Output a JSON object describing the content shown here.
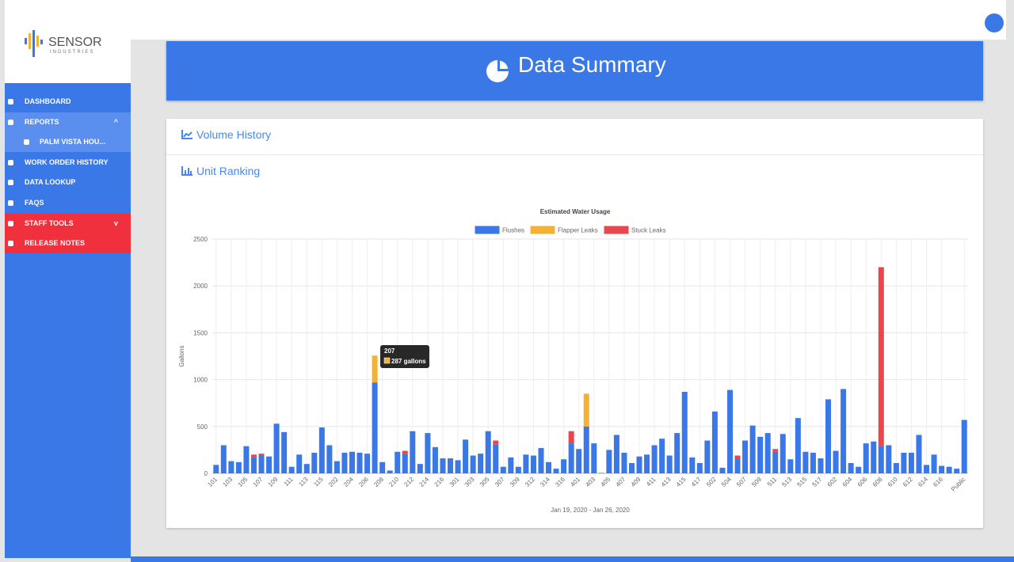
{
  "logo": {
    "name": "SENSOR",
    "tagline": "INDUSTRIES"
  },
  "nav": [
    {
      "label": "DASHBOARD"
    },
    {
      "label": "REPORTS"
    },
    {
      "label": "PALM VISTA HOU..."
    },
    {
      "label": "WORK ORDER HISTORY"
    },
    {
      "label": "DATA LOOKUP"
    },
    {
      "label": "FAQS"
    },
    {
      "label": "STAFF TOOLS"
    },
    {
      "label": "RELEASE NOTES"
    }
  ],
  "header": {
    "title": "Data Summary"
  },
  "sections": [
    "Volume History",
    "Unit Ranking"
  ],
  "chart_data": {
    "type": "stacked_bar",
    "title": "Estimated Water Usage",
    "y_label": "Gallons",
    "x_label": "Jan 19, 2020 - Jan 26, 2020",
    "ylim": [
      0,
      2500
    ],
    "yticks": [
      0,
      500,
      1000,
      1500,
      2000,
      2500
    ],
    "grid": true,
    "legend": "top",
    "tooltip": {
      "title": "207",
      "text": "287 gallons"
    },
    "categories": [
      "101",
      null,
      "103",
      null,
      "105",
      null,
      "107",
      null,
      "109",
      null,
      "111",
      null,
      "113",
      null,
      "115",
      null,
      "202",
      null,
      "204",
      null,
      "206",
      null,
      "208",
      null,
      "210",
      null,
      "212",
      null,
      "214",
      null,
      "216",
      null,
      "301",
      null,
      "303",
      null,
      "305",
      null,
      "307",
      null,
      "309",
      null,
      "312",
      null,
      "314",
      null,
      "316",
      null,
      "401",
      null,
      "403",
      null,
      "405",
      null,
      "407",
      null,
      "409",
      null,
      "411",
      null,
      "413",
      null,
      "415",
      null,
      "417",
      null,
      "502",
      null,
      "504",
      null,
      "507",
      null,
      "509",
      null,
      "511",
      null,
      "513",
      null,
      "515",
      null,
      "517",
      null,
      "602",
      null,
      "604",
      null,
      "606",
      null,
      "608",
      null,
      "610",
      null,
      "612",
      null,
      "614",
      null,
      "616",
      null,
      null,
      "Public"
    ],
    "series": [
      {
        "name": "Flushes",
        "color": "#3b78e7",
        "values": [
          90,
          300,
          130,
          120,
          290,
          170,
          190,
          180,
          530,
          440,
          70,
          200,
          100,
          220,
          490,
          300,
          130,
          220,
          230,
          220,
          210,
          970,
          120,
          30,
          230,
          210,
          450,
          100,
          430,
          280,
          160,
          160,
          140,
          360,
          190,
          210,
          450,
          310,
          70,
          170,
          70,
          200,
          190,
          270,
          120,
          50,
          150,
          320,
          260,
          500,
          320,
          5,
          250,
          410,
          220,
          110,
          180,
          200,
          300,
          370,
          190,
          430,
          870,
          170,
          110,
          350,
          660,
          60,
          890,
          160,
          350,
          510,
          390,
          430,
          230,
          420,
          150,
          590,
          230,
          220,
          160,
          790,
          240,
          900,
          110,
          70,
          320,
          340,
          290,
          300,
          110,
          220,
          220,
          410,
          90,
          200,
          80,
          70,
          50,
          570
        ]
      },
      {
        "name": "Flapper Leaks",
        "color": "#f4b135",
        "values": [
          0,
          0,
          0,
          0,
          0,
          0,
          0,
          0,
          0,
          0,
          0,
          0,
          0,
          0,
          0,
          0,
          0,
          0,
          0,
          0,
          0,
          287,
          0,
          0,
          0,
          0,
          0,
          0,
          0,
          0,
          0,
          0,
          0,
          0,
          0,
          0,
          0,
          0,
          0,
          0,
          0,
          0,
          0,
          0,
          0,
          0,
          0,
          0,
          0,
          350,
          0,
          0,
          0,
          0,
          0,
          0,
          0,
          0,
          0,
          0,
          0,
          0,
          0,
          0,
          0,
          0,
          0,
          0,
          0,
          0,
          0,
          0,
          0,
          0,
          0,
          0,
          0,
          0,
          0,
          0,
          0,
          0,
          0,
          0,
          0,
          0,
          0,
          0,
          0,
          0,
          0,
          0,
          0,
          0,
          0,
          0,
          0,
          0,
          0,
          0
        ]
      },
      {
        "name": "Stuck Leaks",
        "color": "#e8474c",
        "values": [
          0,
          0,
          0,
          0,
          0,
          30,
          20,
          0,
          0,
          0,
          0,
          0,
          0,
          0,
          0,
          0,
          0,
          0,
          0,
          0,
          0,
          0,
          0,
          0,
          0,
          30,
          0,
          0,
          0,
          0,
          0,
          0,
          0,
          0,
          0,
          0,
          0,
          40,
          0,
          0,
          0,
          0,
          0,
          0,
          0,
          0,
          0,
          130,
          0,
          0,
          0,
          0,
          0,
          0,
          0,
          0,
          0,
          0,
          0,
          0,
          0,
          0,
          0,
          0,
          0,
          0,
          0,
          0,
          0,
          30,
          0,
          0,
          0,
          0,
          30,
          0,
          0,
          0,
          0,
          0,
          0,
          0,
          0,
          0,
          0,
          0,
          0,
          0,
          1910,
          0,
          0,
          0,
          0,
          0,
          0,
          0,
          0,
          0,
          0,
          0
        ]
      }
    ]
  }
}
